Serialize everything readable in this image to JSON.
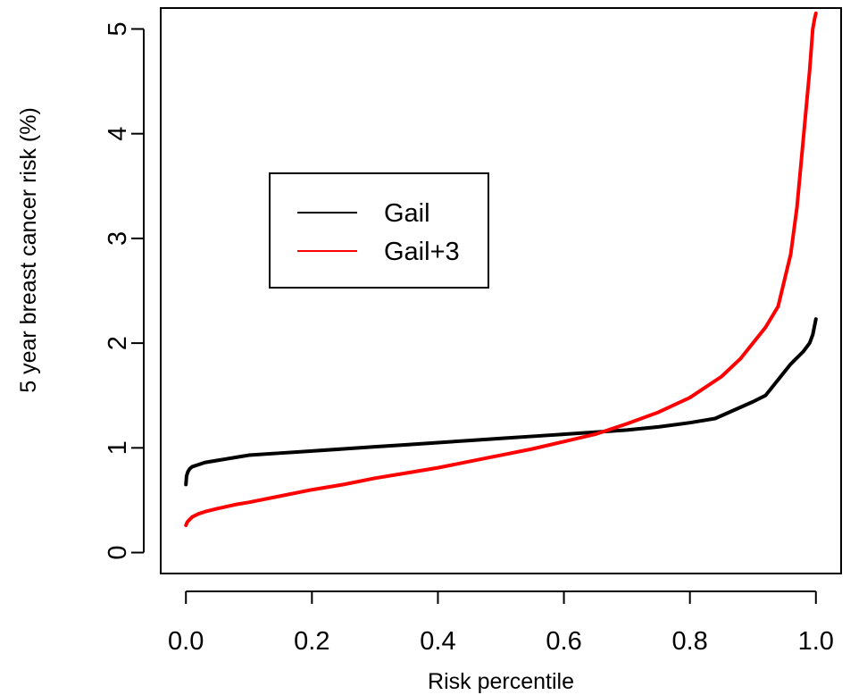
{
  "chart_data": {
    "type": "line",
    "title": "",
    "xlabel": "Risk percentile",
    "ylabel": "5 year breast cancer risk (%)",
    "xlim": [
      -0.04,
      1.04
    ],
    "ylim": [
      -0.2,
      5.2
    ],
    "x_ticks": [
      0.0,
      0.2,
      0.4,
      0.6,
      0.8,
      1.0
    ],
    "x_tick_labels": [
      "0.0",
      "0.2",
      "0.4",
      "0.6",
      "0.8",
      "1.0"
    ],
    "y_ticks": [
      0,
      1,
      2,
      3,
      4,
      5
    ],
    "y_tick_labels": [
      "0",
      "1",
      "2",
      "3",
      "4",
      "5"
    ],
    "grid": false,
    "legend_position": "upper-left",
    "series": [
      {
        "name": "Gail",
        "color": "#000000",
        "x": [
          0.0,
          0.001,
          0.003,
          0.006,
          0.01,
          0.02,
          0.03,
          0.05,
          0.08,
          0.1,
          0.15,
          0.2,
          0.25,
          0.3,
          0.35,
          0.4,
          0.45,
          0.5,
          0.55,
          0.6,
          0.65,
          0.7,
          0.75,
          0.8,
          0.84,
          0.87,
          0.9,
          0.92,
          0.94,
          0.96,
          0.98,
          0.99,
          0.995,
          1.0
        ],
        "y": [
          0.65,
          0.73,
          0.77,
          0.8,
          0.82,
          0.84,
          0.86,
          0.88,
          0.91,
          0.93,
          0.95,
          0.97,
          0.99,
          1.01,
          1.03,
          1.05,
          1.07,
          1.09,
          1.11,
          1.13,
          1.15,
          1.17,
          1.2,
          1.24,
          1.28,
          1.36,
          1.44,
          1.5,
          1.65,
          1.8,
          1.92,
          2.0,
          2.08,
          2.23
        ]
      },
      {
        "name": "Gail+3",
        "color": "#ff0000",
        "x": [
          0.0,
          0.002,
          0.005,
          0.01,
          0.02,
          0.03,
          0.05,
          0.08,
          0.1,
          0.15,
          0.2,
          0.25,
          0.3,
          0.35,
          0.4,
          0.45,
          0.5,
          0.55,
          0.6,
          0.65,
          0.7,
          0.75,
          0.8,
          0.85,
          0.88,
          0.9,
          0.92,
          0.94,
          0.95,
          0.96,
          0.97,
          0.98,
          0.99,
          0.995,
          0.998,
          1.0
        ],
        "y": [
          0.26,
          0.29,
          0.31,
          0.34,
          0.37,
          0.39,
          0.42,
          0.46,
          0.48,
          0.54,
          0.6,
          0.65,
          0.71,
          0.76,
          0.81,
          0.87,
          0.93,
          0.99,
          1.06,
          1.13,
          1.23,
          1.34,
          1.48,
          1.68,
          1.85,
          2.0,
          2.15,
          2.35,
          2.6,
          2.85,
          3.3,
          3.95,
          4.6,
          5.0,
          5.1,
          5.15
        ]
      }
    ]
  }
}
